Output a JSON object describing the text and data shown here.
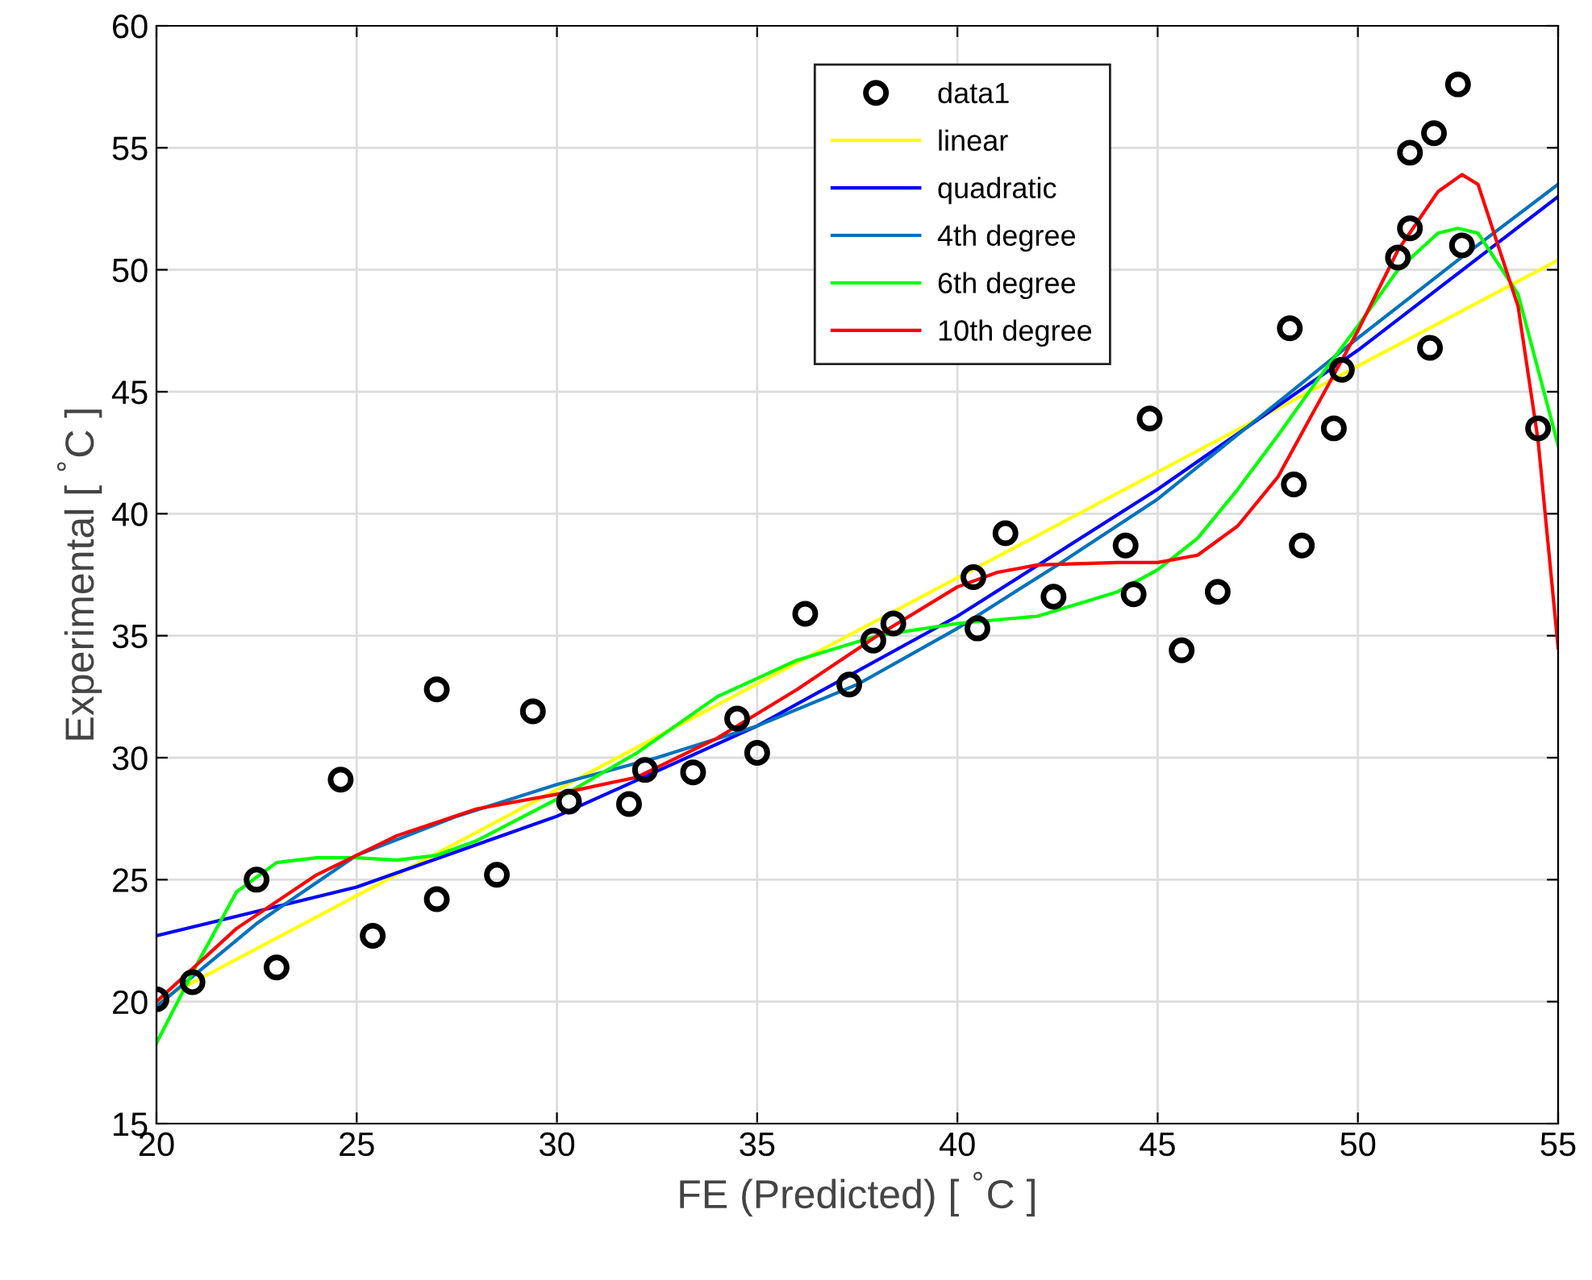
{
  "chart_data": {
    "type": "line",
    "xlabel": "FE (Predicted) [ $^{°}$C ]",
    "ylabel": "Experimental [ $^{°}$C ]",
    "xlim": [
      20,
      55
    ],
    "ylim": [
      15,
      60
    ],
    "xticks": [
      20,
      25,
      30,
      35,
      40,
      45,
      50,
      55
    ],
    "yticks": [
      15,
      20,
      25,
      30,
      35,
      40,
      45,
      50,
      55,
      60
    ],
    "grid": true,
    "legend": "top",
    "series": [
      {
        "name": "data1",
        "type": "scatter",
        "marker": "circle",
        "color": "#000000",
        "x": [
          20.0,
          20.9,
          22.5,
          23.0,
          24.6,
          25.4,
          27.0,
          27.0,
          28.5,
          29.4,
          30.3,
          31.8,
          32.2,
          33.4,
          34.5,
          35.0,
          36.2,
          37.3,
          37.9,
          38.4,
          40.4,
          40.5,
          41.2,
          42.4,
          44.2,
          44.4,
          44.8,
          45.6,
          46.5,
          48.3,
          48.4,
          48.6,
          49.4,
          49.6,
          51.0,
          51.3,
          51.3,
          51.9,
          51.8,
          52.5,
          52.6,
          54.5
        ],
        "values": [
          20.1,
          20.8,
          25.0,
          21.4,
          29.1,
          22.7,
          32.8,
          24.2,
          25.2,
          31.9,
          28.2,
          28.1,
          29.5,
          29.4,
          31.6,
          30.2,
          35.9,
          33.0,
          34.8,
          35.5,
          37.4,
          35.3,
          39.2,
          36.6,
          38.7,
          36.7,
          43.9,
          34.4,
          36.8,
          47.6,
          41.2,
          38.7,
          43.5,
          45.9,
          50.5,
          51.7,
          54.8,
          55.6,
          46.8,
          57.6,
          51.0,
          43.5
        ]
      },
      {
        "name": "linear",
        "color": "#ffff00",
        "x": [
          20,
          55
        ],
        "values": [
          20.0,
          50.4
        ]
      },
      {
        "name": "quadratic",
        "color": "#0000ff",
        "x": [
          20,
          25,
          30,
          35,
          40,
          45,
          50,
          55
        ],
        "values": [
          22.7,
          24.7,
          27.6,
          31.3,
          35.8,
          41.0,
          46.7,
          53.0
        ]
      },
      {
        "name": "4th degree",
        "color": "#0072bd",
        "x": [
          20,
          22.5,
          25,
          27.5,
          30,
          32.5,
          35,
          37.5,
          40,
          42.5,
          45,
          47.5,
          50,
          52.5,
          55
        ],
        "values": [
          19.8,
          23.2,
          26.0,
          27.6,
          28.9,
          30.0,
          31.3,
          33.0,
          35.3,
          37.9,
          40.6,
          43.9,
          47.2,
          50.4,
          53.5
        ]
      },
      {
        "name": "6th degree",
        "color": "#00ff00",
        "x": [
          20,
          21,
          22,
          23,
          24,
          25,
          26,
          27,
          28,
          30,
          32,
          34,
          36,
          38,
          40,
          42,
          44,
          45,
          46,
          47,
          48,
          49,
          50,
          51,
          52,
          52.5,
          53,
          54,
          55
        ],
        "values": [
          18.3,
          21.5,
          24.5,
          25.7,
          25.9,
          25.9,
          25.8,
          26.0,
          26.6,
          28.3,
          30.2,
          32.5,
          34.0,
          35.0,
          35.5,
          35.8,
          36.8,
          37.7,
          39.0,
          41.0,
          43.2,
          45.5,
          47.7,
          50.0,
          51.5,
          51.7,
          51.5,
          49.0,
          42.8
        ]
      },
      {
        "name": "10th degree",
        "color": "#ff0000",
        "x": [
          20,
          21,
          22,
          24,
          26,
          28,
          30,
          32,
          34,
          36,
          38,
          40,
          41,
          42,
          44,
          45,
          46,
          47,
          48,
          49,
          50,
          51,
          52,
          52.6,
          53,
          54,
          54.5,
          55
        ],
        "values": [
          20.0,
          21.5,
          23.0,
          25.2,
          26.8,
          27.9,
          28.5,
          29.2,
          30.8,
          32.8,
          35.0,
          37.0,
          37.6,
          37.9,
          38.0,
          38.0,
          38.3,
          39.5,
          41.5,
          44.5,
          47.5,
          50.8,
          53.2,
          53.9,
          53.5,
          48.5,
          43.0,
          34.5
        ]
      }
    ]
  }
}
